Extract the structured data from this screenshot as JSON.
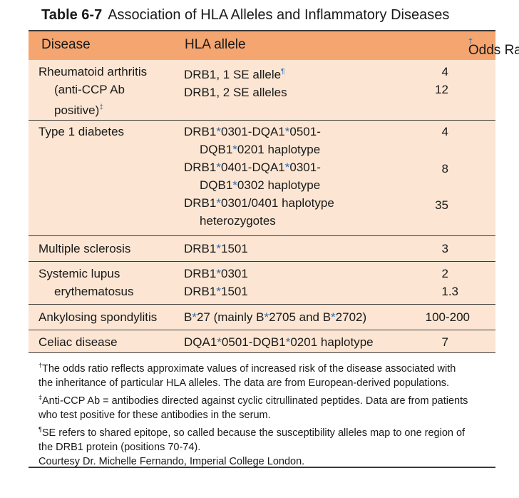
{
  "title": {
    "label": "Table 6-7",
    "text": "Association of HLA Alleles and Inflammatory Diseases"
  },
  "columns": {
    "disease": "Disease",
    "allele": "HLA allele",
    "odds": "Odds Ratio",
    "odds_mark": "†"
  },
  "rows": {
    "ra": {
      "disease_l1": "Rheumatoid arthritis",
      "disease_l2": "(anti-CCP Ab",
      "disease_l3": "positive)",
      "disease_mark": "‡",
      "allele1": "DRB1, 1 SE allele",
      "allele1_mark": "¶",
      "allele2": "DRB1, 2 SE alleles",
      "odds1": "4",
      "odds2": "12"
    },
    "t1d": {
      "disease": "Type 1 diabetes",
      "a1_l1_p1": "DRB1",
      "a1_l1_p2": "0301-DQA1",
      "a1_l1_p3": "0501-",
      "a1_l2_p1": "DQB1",
      "a1_l2_p2": "0201 haplotype",
      "a2_l1_p1": "DRB1",
      "a2_l1_p2": "0401-DQA1",
      "a2_l1_p3": "0301-",
      "a2_l2_p1": "DQB1",
      "a2_l2_p2": "0302 haplotype",
      "a3_l1_p1": "DRB1",
      "a3_l1_p2": "0301/0401 haplotype",
      "a3_l2": "heterozygotes",
      "odds1": "4",
      "odds2": "8",
      "odds3": "35"
    },
    "ms": {
      "disease": "Multiple sclerosis",
      "allele_p1": "DRB1",
      "allele_p2": "1501",
      "odds": "3"
    },
    "sle": {
      "disease_l1": "Systemic lupus",
      "disease_l2": "erythematosus",
      "a1_p1": "DRB1",
      "a1_p2": "0301",
      "a2_p1": "DRB1",
      "a2_p2": "1501",
      "odds1": "2",
      "odds2": "1.3"
    },
    "as": {
      "disease": "Ankylosing spondylitis",
      "allele_p1": "B",
      "allele_p2": "27 (mainly B",
      "allele_p3": "2705 and B",
      "allele_p4": "2702)",
      "odds": "100-200"
    },
    "celiac": {
      "disease": "Celiac disease",
      "allele_p1": "DQA1",
      "allele_p2": "0501-DQB1",
      "allele_p3": "0201 haplotype",
      "odds": "7"
    }
  },
  "star": "*",
  "footnotes": {
    "f1_mark": "†",
    "f1_l1": "The odds ratio reflects approximate values of increased risk of the disease associated with",
    "f1_l2": "the inheritance of particular HLA alleles. The data are from European-derived populations.",
    "f2_mark": "‡",
    "f2_l1": "Anti-CCP Ab = antibodies directed against cyclic citrullinated peptides. Data are from patients",
    "f2_l2": "who test positive for these antibodies in the serum.",
    "f3_mark": "¶",
    "f3_l1": "SE refers to shared epitope, so called because the susceptibility alleles map to one region of",
    "f3_l2": "the DRB1 protein (positions 70-74).",
    "courtesy": "Courtesy Dr. Michelle Fernando, Imperial College London."
  },
  "colors": {
    "header_bg": "#f5a56f",
    "body_bg": "#fce6d3",
    "accent": "#2a6db0"
  }
}
